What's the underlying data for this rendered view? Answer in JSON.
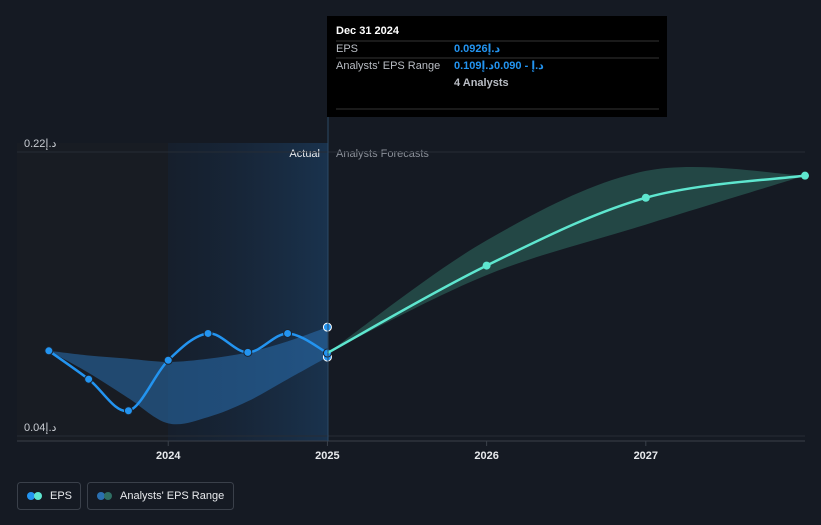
{
  "chart_data": {
    "type": "line",
    "annotations": {
      "actual": "Actual",
      "forecast": "Analysts Forecasts"
    },
    "xlim": [
      2023.05,
      2028.0
    ],
    "xticks": [
      2024,
      2025,
      2026,
      2027
    ],
    "ylim": [
      0.04,
      0.22
    ],
    "yticks": [
      {
        "value": 0.04,
        "label": "0.04د.إ"
      },
      {
        "value": 0.22,
        "label": "0.22د.إ"
      }
    ],
    "series": [
      {
        "name": "EPS",
        "color": "#2394f0",
        "x": [
          2023.25,
          2023.5,
          2023.75,
          2024.0,
          2024.25,
          2024.5,
          2024.75,
          2025.0
        ],
        "values": [
          0.094,
          0.076,
          0.056,
          0.088,
          0.105,
          0.093,
          0.105,
          0.0926
        ]
      },
      {
        "color": "#5ee6cf",
        "x": [
          2025.0,
          2026.0,
          2027.0,
          2028.0
        ],
        "values": [
          0.0926,
          0.148,
          0.191,
          0.205
        ]
      }
    ],
    "ranges": [
      {
        "name": "Analysts' EPS Range",
        "color": "#2a6fb0",
        "x": [
          2023.25,
          2023.5,
          2023.75,
          2024.0,
          2024.25,
          2024.5,
          2024.75,
          2025.0
        ],
        "high": [
          0.094,
          0.091,
          0.089,
          0.087,
          0.089,
          0.093,
          0.1,
          0.109
        ],
        "low": [
          0.094,
          0.08,
          0.064,
          0.048,
          0.052,
          0.062,
          0.076,
          0.09
        ]
      },
      {
        "color": "#2f6e63",
        "x": [
          2025.0,
          2026.0,
          2027.0,
          2028.0
        ],
        "high": [
          0.0926,
          0.164,
          0.208,
          0.205
        ],
        "low": [
          0.0926,
          0.142,
          0.174,
          0.205
        ]
      }
    ],
    "tooltip": {
      "date": "Dec 31 2024",
      "rows": [
        {
          "label": "EPS",
          "value": "0.0926د.إ"
        },
        {
          "label": "Analysts' EPS Range",
          "value": "0.109د.إ - 0.090د.إ"
        },
        {
          "label": "",
          "value": "4 Analysts"
        }
      ]
    }
  }
}
